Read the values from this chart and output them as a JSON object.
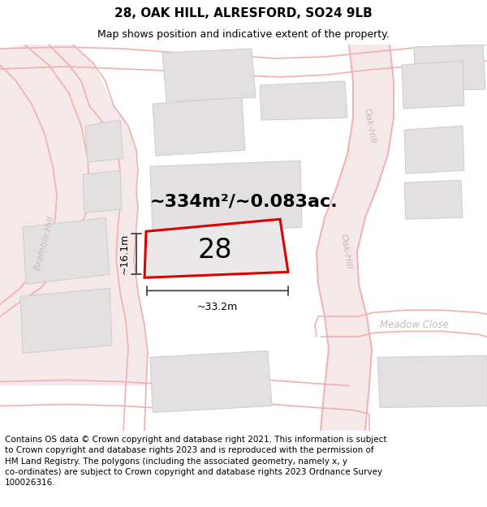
{
  "title_line1": "28, OAK HILL, ALRESFORD, SO24 9LB",
  "title_line2": "Map shows position and indicative extent of the property.",
  "area_text": "~334m²/~0.083ac.",
  "plot_number": "28",
  "dim_width": "~33.2m",
  "dim_height": "~16.1m",
  "footer_text": "Contains OS data © Crown copyright and database right 2021. This information is subject\nto Crown copyright and database rights 2023 and is reproduced with the permission of\nHM Land Registry. The polygons (including the associated geometry, namely x, y\nco-ordinates) are subject to Crown copyright and database rights 2023 Ordnance Survey\n100026316.",
  "bg_color": "#f7f6f6",
  "road_color": "#f0b0b0",
  "road_fill": "#f5e8e8",
  "building_fill": "#e2e0e0",
  "building_edge": "#d0cccc",
  "plot_fill": "#eae8e8",
  "plot_border": "#dd0000",
  "street_label_color": "#c8b8b8",
  "dim_color": "#444444",
  "title_fontsize": 11,
  "subtitle_fontsize": 9,
  "area_fontsize": 16,
  "number_fontsize": 24,
  "footer_fontsize": 7.5,
  "dim_label_fontsize": 9
}
